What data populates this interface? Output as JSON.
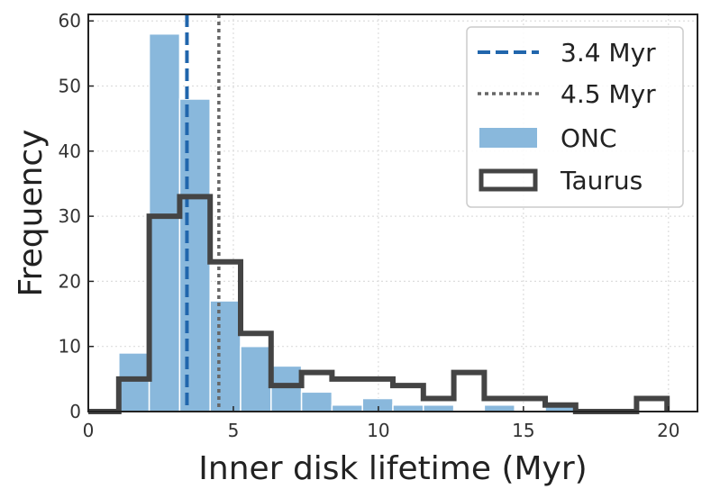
{
  "chart_data": {
    "type": "bar",
    "xlabel": "Inner disk lifetime (Myr)",
    "ylabel": "Frequency",
    "xlim": [
      0,
      21
    ],
    "ylim": [
      0,
      61
    ],
    "xticks": [
      0,
      5,
      10,
      15,
      20
    ],
    "yticks": [
      0,
      10,
      20,
      30,
      40,
      50,
      60
    ],
    "grid": true,
    "legend_position": "top-right",
    "series": [
      {
        "name": "ONC",
        "kind": "histogram",
        "color": "#89b8dc",
        "bin_edges": [
          1.05,
          2.1,
          3.15,
          4.2,
          5.25,
          6.3,
          7.35,
          8.4,
          9.45,
          10.5,
          11.55,
          12.6,
          13.65,
          14.7,
          15.75,
          16.8
        ],
        "values": [
          9,
          58,
          48,
          17,
          10,
          7,
          3,
          1,
          2,
          1,
          1,
          0,
          1,
          0,
          1
        ]
      },
      {
        "name": "Taurus",
        "kind": "step-histogram",
        "color": "#444444",
        "bin_edges": [
          0,
          1.05,
          2.1,
          3.15,
          4.2,
          5.25,
          6.3,
          7.35,
          8.4,
          9.45,
          10.5,
          11.55,
          12.6,
          13.65,
          14.7,
          15.75,
          16.8,
          17.85,
          18.9,
          19.95
        ],
        "values": [
          0,
          5,
          30,
          33,
          23,
          12,
          4,
          6,
          5,
          5,
          4,
          2,
          6,
          2,
          2,
          1,
          0,
          0,
          2
        ]
      },
      {
        "name": "3.4 Myr",
        "kind": "vline",
        "x": 3.4,
        "color": "#2166ac",
        "style": "dashed"
      },
      {
        "name": "4.5 Myr",
        "kind": "vline",
        "x": 4.5,
        "color": "#666666",
        "style": "dotted"
      }
    ]
  }
}
